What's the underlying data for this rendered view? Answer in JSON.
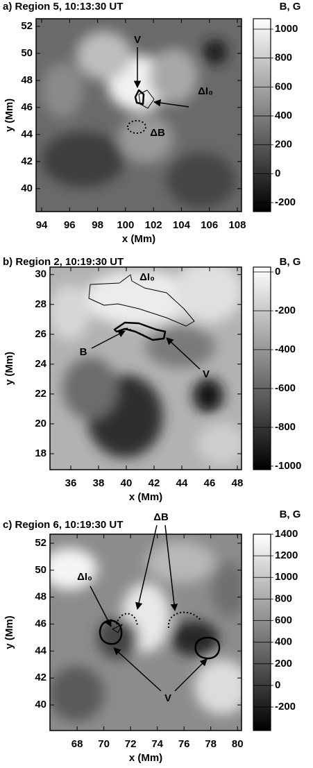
{
  "chart_data": [
    {
      "type": "image",
      "title": "a)  Region 5,  10:13:30 UT",
      "x_label": "x (Mm)",
      "y_label": "y (Mm)",
      "xlim": [
        93.6,
        108.3
      ],
      "ylim": [
        38.3,
        52.56
      ],
      "xticks": [
        94,
        96,
        98,
        100,
        102,
        104,
        106,
        108
      ],
      "yticks": [
        40,
        42,
        44,
        46,
        48,
        50,
        52
      ],
      "colorbar": {
        "label": "B, G",
        "lim": [
          -262,
          1072
        ],
        "ticks": [
          -200,
          0,
          200,
          400,
          600,
          800,
          1000
        ]
      },
      "annotations": [
        "V",
        "ΔI₀",
        "ΔB"
      ]
    },
    {
      "type": "image",
      "title": "b)  Region 2,  10:19:30 UT",
      "x_label": "x (Mm)",
      "y_label": "y (Mm)",
      "xlim": [
        34.5,
        48.3
      ],
      "ylim": [
        16.93,
        30.5
      ],
      "xticks": [
        36,
        38,
        40,
        42,
        44,
        46,
        48
      ],
      "yticks": [
        18,
        20,
        22,
        24,
        26,
        28,
        30
      ],
      "colorbar": {
        "label": "B, G",
        "lim": [
          -1018,
          25
        ],
        "ticks": [
          -1000,
          -800,
          -600,
          -400,
          -200,
          0
        ]
      },
      "annotations": [
        "ΔI₀",
        "B",
        "V"
      ]
    },
    {
      "type": "image",
      "title": "c)  Region 6,  10:19:30 UT",
      "x_label": "x (Mm)",
      "y_label": "y (Mm)",
      "xlim": [
        65.97,
        80.3
      ],
      "ylim": [
        38.1,
        52.67
      ],
      "xticks": [
        68,
        70,
        72,
        74,
        76,
        78,
        80
      ],
      "yticks": [
        40,
        42,
        44,
        46,
        48,
        50,
        52
      ],
      "colorbar": {
        "label": "B, G",
        "lim": [
          -418,
          1400
        ],
        "ticks": [
          -200,
          0,
          200,
          400,
          600,
          800,
          1000,
          1200,
          1400
        ]
      },
      "annotations": [
        "ΔB",
        "ΔI₀",
        "V"
      ]
    }
  ]
}
